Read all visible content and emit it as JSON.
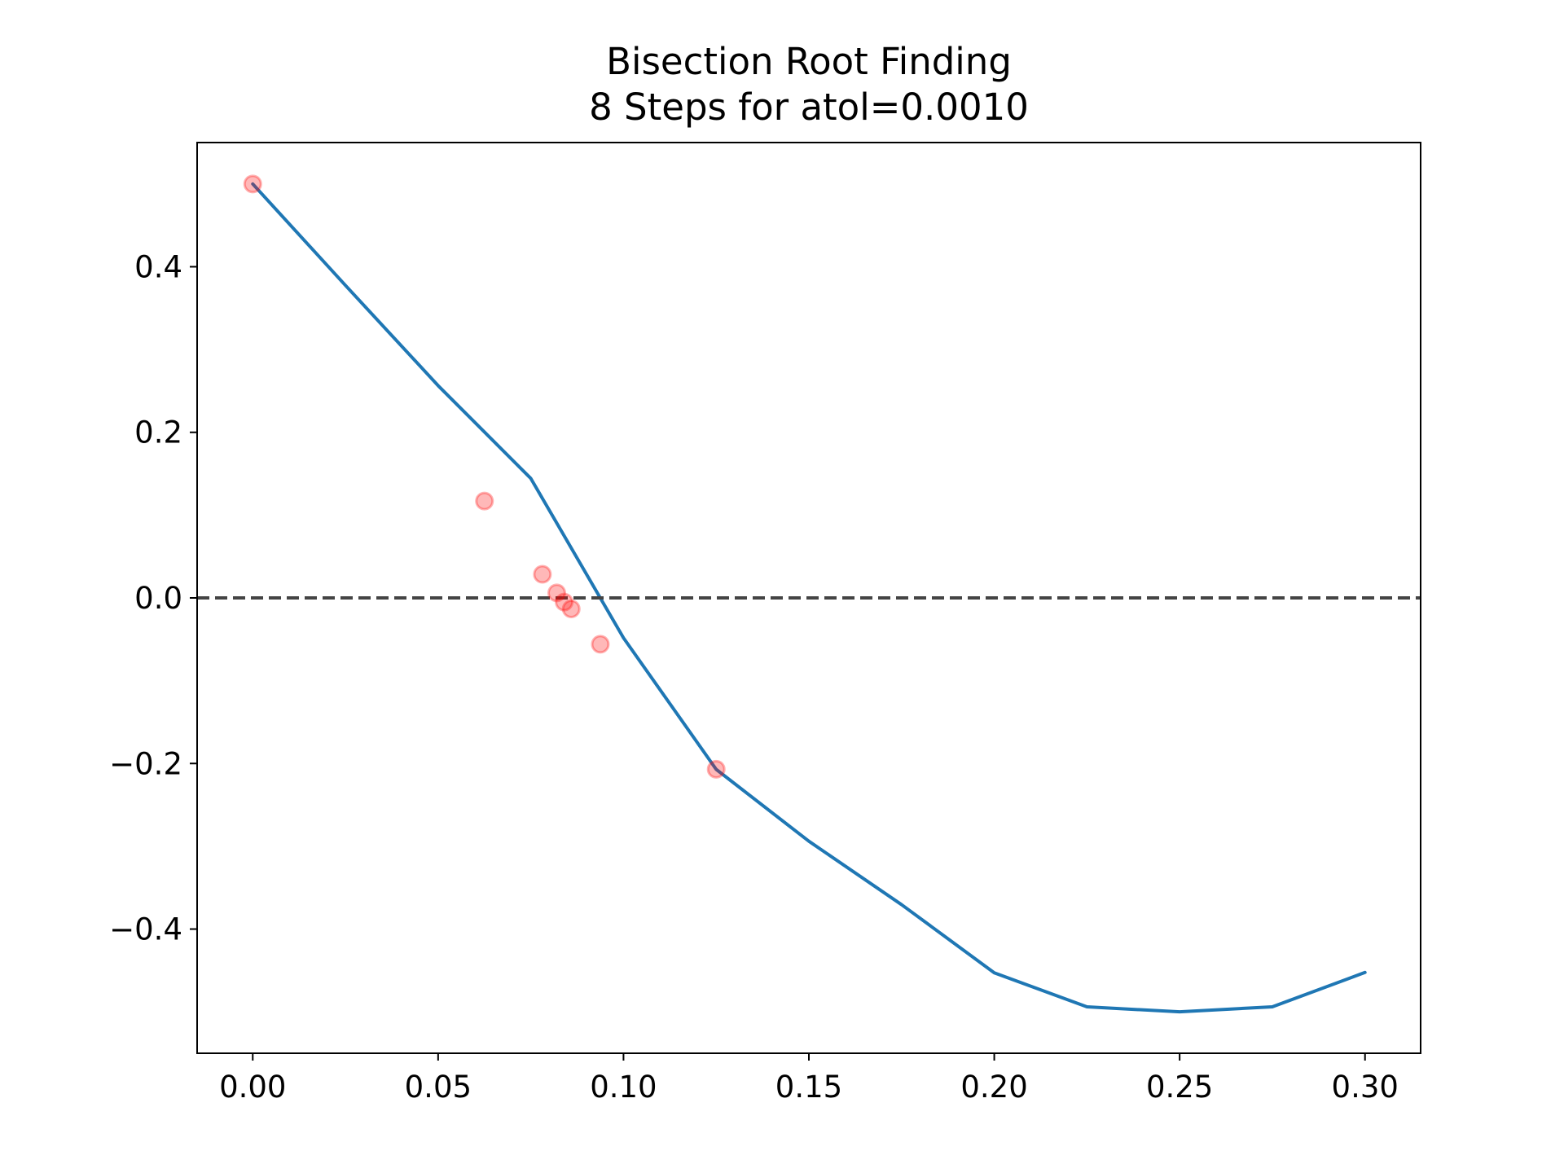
{
  "chart_data": {
    "type": "line",
    "title": "Bisection Root Finding",
    "subtitle": "8 Steps for atol=0.0010",
    "xlabel": "",
    "ylabel": "",
    "xlim": [
      -0.015,
      0.315
    ],
    "ylim": [
      -0.55,
      0.55
    ],
    "x_ticks": [
      0.0,
      0.05,
      0.1,
      0.15,
      0.2,
      0.25,
      0.3
    ],
    "x_tick_labels": [
      "0.00",
      "0.05",
      "0.10",
      "0.15",
      "0.20",
      "0.25",
      "0.30"
    ],
    "y_ticks": [
      -0.4,
      -0.2,
      0.0,
      0.2,
      0.4
    ],
    "y_tick_labels": [
      "−0.4",
      "−0.2",
      "0.0",
      "0.2",
      "0.4"
    ],
    "grid": false,
    "legend": "none",
    "function_curve": {
      "color": "#1f77b4",
      "x_range": [
        0.0,
        0.3
      ],
      "x": [
        0.0,
        0.025,
        0.05,
        0.075,
        0.1,
        0.125,
        0.15,
        0.175,
        0.2,
        0.225,
        0.25,
        0.275,
        0.3
      ],
      "y": [
        0.5,
        0.3775,
        0.2564,
        0.1443,
        -0.0483,
        -0.2071,
        -0.2939,
        -0.3705,
        -0.4528,
        -0.4939,
        -0.5,
        -0.4939,
        -0.4524
      ]
    },
    "zero_line": {
      "y": 0.0,
      "style": "dashed",
      "color": "#444444"
    },
    "bisection_points": {
      "color": "#ff0000",
      "x": [
        0.0,
        0.0625,
        0.078125,
        0.082,
        0.084,
        0.0859,
        0.09375,
        0.125
      ],
      "y": [
        0.5,
        0.117,
        0.0285,
        0.006,
        -0.005,
        -0.0133,
        -0.056,
        -0.207
      ]
    }
  }
}
